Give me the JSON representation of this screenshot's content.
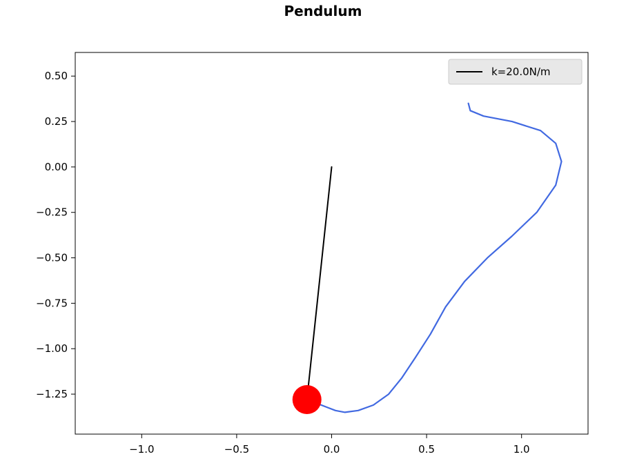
{
  "chart_data": {
    "type": "line",
    "title": "Pendulum",
    "xlabel": "",
    "ylabel": "",
    "xlim": [
      -1.35,
      1.35
    ],
    "ylim": [
      -1.47,
      0.63
    ],
    "grid": false,
    "legend_position": "top-right",
    "x_ticks": [
      -1.0,
      -0.5,
      0.0,
      0.5,
      1.0
    ],
    "x_tick_labels": [
      "−1.0",
      "−0.5",
      "0.0",
      "0.5",
      "1.0"
    ],
    "y_ticks": [
      0.5,
      0.25,
      0.0,
      -0.25,
      -0.5,
      -0.75,
      -1.0,
      -1.25
    ],
    "y_tick_labels": [
      "0.50",
      "0.25",
      "0.00",
      "−0.25",
      "−0.50",
      "−0.75",
      "−1.00",
      "−1.25"
    ],
    "series": [
      {
        "name": "k=20.0N/m",
        "kind": "rod",
        "color": "#000000",
        "x": [
          0.0,
          -0.13
        ],
        "y": [
          0.0,
          -1.28
        ]
      },
      {
        "kind": "trajectory",
        "color": "#4169e1",
        "x": [
          0.72,
          0.73,
          0.8,
          0.95,
          1.1,
          1.18,
          1.21,
          1.18,
          1.08,
          0.95,
          0.82,
          0.7,
          0.6,
          0.52,
          0.44,
          0.37,
          0.3,
          0.22,
          0.14,
          0.07,
          0.02,
          -0.03,
          -0.08,
          -0.13
        ],
        "y": [
          0.35,
          0.31,
          0.28,
          0.25,
          0.2,
          0.13,
          0.03,
          -0.1,
          -0.25,
          -0.38,
          -0.5,
          -0.63,
          -0.77,
          -0.92,
          -1.05,
          -1.16,
          -1.25,
          -1.31,
          -1.34,
          -1.35,
          -1.34,
          -1.32,
          -1.3,
          -1.28
        ]
      }
    ],
    "bob": {
      "x": -0.13,
      "y": -1.28,
      "color": "#ff0000"
    }
  }
}
